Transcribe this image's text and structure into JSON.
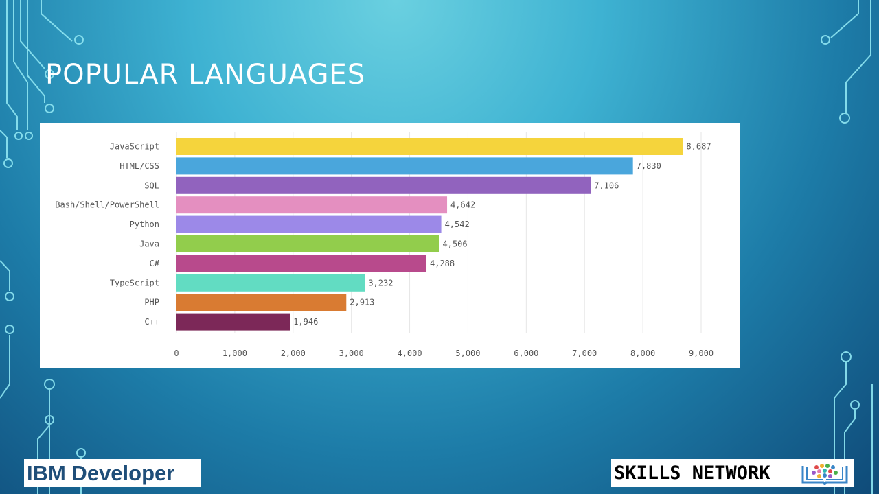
{
  "slide": {
    "title": "POPULAR LANGUAGES"
  },
  "logos": {
    "left": "IBM Developer",
    "right": "SKILLS NETWORK",
    "right_icon": "book-people-icon"
  },
  "chart_data": {
    "type": "bar",
    "orientation": "horizontal",
    "title": "",
    "xlabel": "",
    "ylabel": "",
    "categories": [
      "JavaScript",
      "HTML/CSS",
      "SQL",
      "Bash/Shell/PowerShell",
      "Python",
      "Java",
      "C#",
      "TypeScript",
      "PHP",
      "C++"
    ],
    "values": [
      8687,
      7830,
      7106,
      4642,
      4542,
      4506,
      4288,
      3232,
      2913,
      1946
    ],
    "value_labels": [
      "8,687",
      "7,830",
      "7,106",
      "4,642",
      "4,542",
      "4,506",
      "4,288",
      "3,232",
      "2,913",
      "1,946"
    ],
    "colors": [
      "#f5d43c",
      "#4aa6dc",
      "#9163be",
      "#e48fc0",
      "#9c89e8",
      "#92cd4c",
      "#b84a8c",
      "#62dcc2",
      "#d97b32",
      "#7c2858"
    ],
    "xlim": [
      0,
      9000
    ],
    "x_ticks": [
      0,
      1000,
      2000,
      3000,
      4000,
      5000,
      6000,
      7000,
      8000,
      9000
    ],
    "x_tick_labels": [
      "0",
      "1,000",
      "2,000",
      "3,000",
      "4,000",
      "5,000",
      "6,000",
      "7,000",
      "8,000",
      "9,000"
    ],
    "grid": true,
    "legend": "none"
  }
}
